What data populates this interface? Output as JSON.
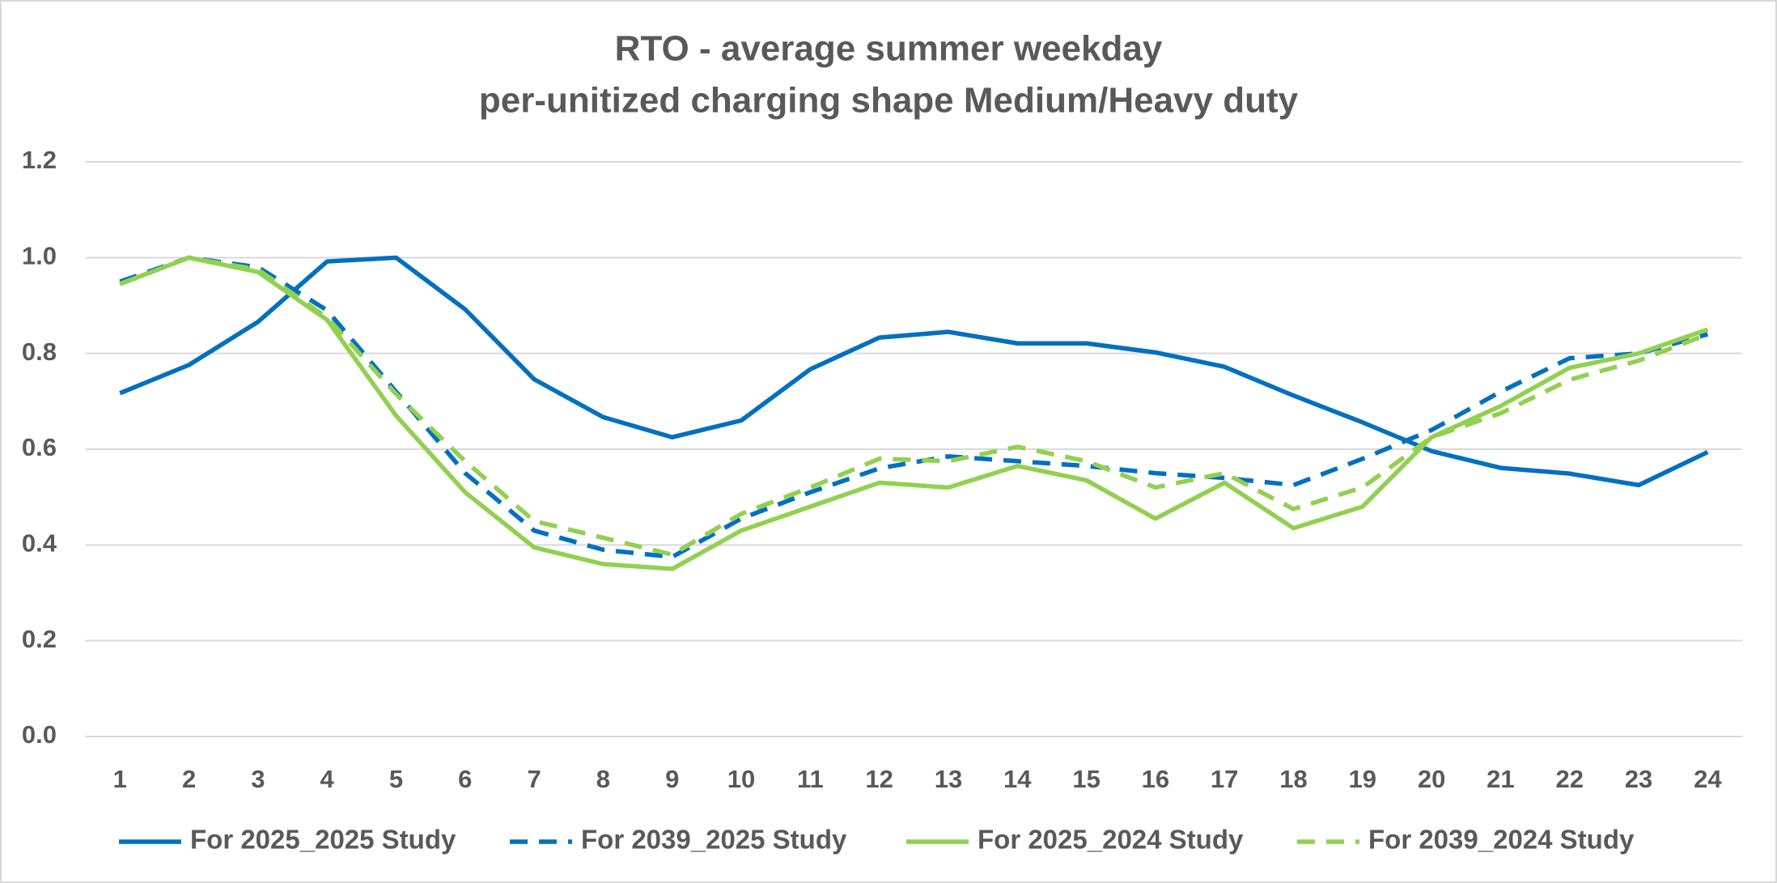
{
  "chart_data": {
    "type": "line",
    "title": [
      "RTO - average summer weekday",
      "per-unitized charging shape Medium/Heavy duty"
    ],
    "categories": [
      "1",
      "2",
      "3",
      "4",
      "5",
      "6",
      "7",
      "8",
      "9",
      "10",
      "11",
      "12",
      "13",
      "14",
      "15",
      "16",
      "17",
      "18",
      "19",
      "20",
      "21",
      "22",
      "23",
      "24"
    ],
    "series": [
      {
        "name": "For 2025_2025 Study",
        "color": "#0070c0",
        "dashed": false,
        "values": [
          0.717,
          0.776,
          0.866,
          0.992,
          1.0,
          0.892,
          0.746,
          0.667,
          0.625,
          0.66,
          0.767,
          0.833,
          0.845,
          0.821,
          0.821,
          0.802,
          0.772,
          0.712,
          0.656,
          0.596,
          0.561,
          0.549,
          0.525,
          0.594
        ]
      },
      {
        "name": "For 2039_2025 Study",
        "color": "#0070c0",
        "dashed": true,
        "values": [
          0.95,
          1.0,
          0.98,
          0.89,
          0.72,
          0.55,
          0.43,
          0.39,
          0.375,
          0.455,
          0.51,
          0.56,
          0.585,
          0.575,
          0.565,
          0.55,
          0.54,
          0.525,
          0.58,
          0.64,
          0.72,
          0.79,
          0.8,
          0.84
        ]
      },
      {
        "name": "For 2025_2024 Study",
        "color": "#92d050",
        "dashed": false,
        "values": [
          0.945,
          1.0,
          0.97,
          0.87,
          0.67,
          0.51,
          0.395,
          0.36,
          0.35,
          0.43,
          0.48,
          0.53,
          0.52,
          0.565,
          0.535,
          0.455,
          0.53,
          0.435,
          0.48,
          0.625,
          0.69,
          0.77,
          0.8,
          0.85
        ]
      },
      {
        "name": "For 2039_2024 Study",
        "color": "#92d050",
        "dashed": true,
        "values": [
          0.945,
          1.0,
          0.975,
          0.875,
          0.715,
          0.575,
          0.45,
          0.415,
          0.38,
          0.465,
          0.52,
          0.58,
          0.575,
          0.605,
          0.575,
          0.52,
          0.55,
          0.475,
          0.52,
          0.625,
          0.675,
          0.745,
          0.785,
          0.84
        ]
      }
    ],
    "ylim": [
      0,
      1.2
    ],
    "yticks": [
      {
        "value": 0,
        "label": "0.0"
      },
      0.2,
      0.4,
      0.6,
      0.8,
      {
        "value": 1,
        "label": "1.0"
      },
      {
        "value": 1.2,
        "label": "1.2"
      }
    ],
    "grid": true,
    "legend": "bottom"
  }
}
